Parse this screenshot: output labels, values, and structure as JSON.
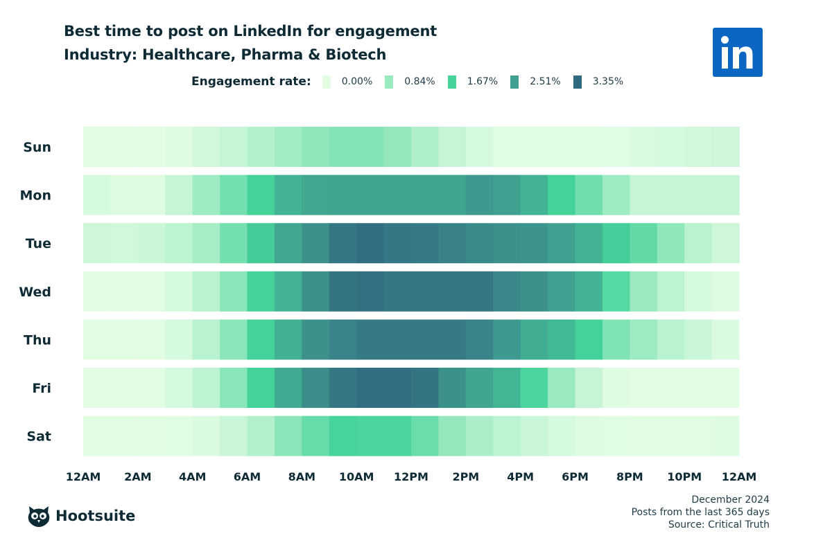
{
  "header": {
    "title": "Best time to post on LinkedIn for engagement",
    "subtitle": "Industry: Healthcare, Pharma & Biotech"
  },
  "chart_data": {
    "type": "heatmap",
    "title": "Best time to post on LinkedIn for engagement",
    "subtitle": "Industry: Healthcare, Pharma & Biotech",
    "legend_title": "Engagement rate:",
    "legend": [
      {
        "label": "0.00%",
        "value": 0.0,
        "color": "#e3fde3"
      },
      {
        "label": "0.84%",
        "value": 0.84,
        "color": "#9aeabf"
      },
      {
        "label": "1.67%",
        "value": 1.67,
        "color": "#45d39a"
      },
      {
        "label": "2.51%",
        "value": 2.51,
        "color": "#40a090"
      },
      {
        "label": "3.35%",
        "value": 3.35,
        "color": "#316a80"
      }
    ],
    "legend_position": "top",
    "value_unit": "%",
    "x_tick_labels": [
      "12AM",
      "2AM",
      "4AM",
      "6AM",
      "8AM",
      "10AM",
      "12PM",
      "2PM",
      "4PM",
      "6PM",
      "8PM",
      "10PM",
      "12AM"
    ],
    "x_hours": 24,
    "y_categories": [
      "Sun",
      "Mon",
      "Tue",
      "Wed",
      "Thu",
      "Fri",
      "Sat"
    ],
    "values": [
      [
        0,
        0,
        0,
        0.05,
        0.2,
        0.35,
        0.55,
        0.75,
        0.95,
        1.05,
        1.05,
        0.9,
        0.6,
        0.35,
        0.15,
        0.02,
        0.02,
        0.02,
        0.02,
        0.03,
        0.1,
        0.15,
        0.2,
        0.25
      ],
      [
        0.15,
        0.05,
        0.05,
        0.35,
        0.8,
        1.2,
        1.7,
        2.2,
        2.4,
        2.45,
        2.45,
        2.45,
        2.45,
        2.45,
        2.6,
        2.5,
        2.2,
        1.7,
        1.25,
        0.8,
        0.35,
        0.35,
        0.35,
        0.35
      ],
      [
        0.25,
        0.22,
        0.28,
        0.45,
        0.7,
        1.2,
        1.8,
        2.4,
        2.75,
        3.15,
        3.3,
        3.15,
        3.1,
        3.0,
        2.85,
        2.75,
        2.7,
        2.5,
        2.2,
        1.75,
        1.4,
        0.95,
        0.5,
        0.25
      ],
      [
        0,
        0,
        0,
        0.15,
        0.5,
        1.0,
        1.7,
        2.2,
        2.75,
        3.2,
        3.25,
        3.15,
        3.15,
        3.15,
        3.15,
        2.9,
        2.75,
        2.5,
        2.2,
        1.5,
        0.85,
        0.45,
        0.15,
        0.05
      ],
      [
        0,
        0,
        0,
        0.15,
        0.5,
        1.0,
        1.7,
        2.25,
        2.75,
        2.95,
        3.1,
        3.1,
        3.1,
        3.1,
        2.95,
        2.6,
        2.3,
        2.1,
        1.7,
        1.1,
        0.8,
        0.5,
        0.3,
        0.1
      ],
      [
        0,
        0,
        0,
        0.15,
        0.45,
        1.0,
        1.7,
        2.35,
        2.8,
        3.15,
        3.3,
        3.3,
        3.2,
        2.75,
        2.45,
        2.15,
        1.6,
        0.85,
        0.35,
        0.05,
        0,
        0,
        0,
        0
      ],
      [
        0,
        0,
        0,
        0.02,
        0.1,
        0.3,
        0.55,
        1.0,
        1.35,
        1.65,
        1.6,
        1.6,
        1.3,
        0.9,
        0.65,
        0.45,
        0.3,
        0.15,
        0.05,
        0.02,
        0,
        0,
        0,
        0.05
      ]
    ]
  },
  "footer": {
    "date": "December 2024",
    "period": "Posts from the last 365 days",
    "source": "Source: Critical Truth"
  },
  "logos": {
    "linkedin": "in",
    "hootsuite": "Hootsuite",
    "linkedin_color": "#0a66c2"
  }
}
